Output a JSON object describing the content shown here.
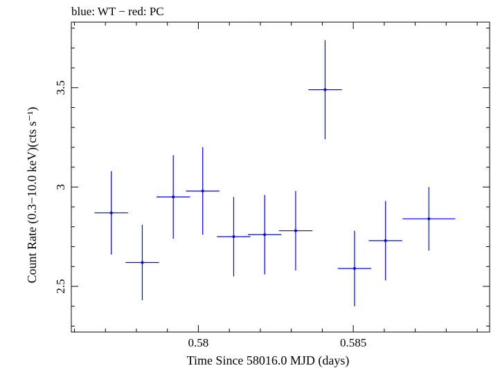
{
  "header": {
    "legend_note": "blue: WT − red: PC"
  },
  "colors": {
    "series": "#0000ff",
    "axis": "#000000",
    "background": "#ffffff"
  },
  "chart_data": {
    "type": "scatter",
    "title": "",
    "xlabel": "Time Since 58016.0 MJD (days)",
    "ylabel": "Count Rate (0.3−10.0 keV)(cts s⁻¹)",
    "xlim": [
      0.5759,
      0.5894
    ],
    "ylim": [
      2.27,
      3.83
    ],
    "x_ticks": [
      0.58,
      0.585
    ],
    "x_tick_labels": [
      "0.58",
      "0.585"
    ],
    "y_ticks": [
      2.5,
      3.0,
      3.5
    ],
    "y_tick_labels": [
      "2.5",
      "3",
      "3.5"
    ],
    "grid": false,
    "series": [
      {
        "points": [
          {
            "x": 0.57719,
            "xerr": 0.00054,
            "y": 2.87,
            "yerr": 0.21
          },
          {
            "x": 0.57819,
            "xerr": 0.00054,
            "y": 2.62,
            "yerr": 0.19
          },
          {
            "x": 0.57919,
            "xerr": 0.00054,
            "y": 2.95,
            "yerr": 0.21
          },
          {
            "x": 0.58014,
            "xerr": 0.00054,
            "y": 2.98,
            "yerr": 0.22
          },
          {
            "x": 0.58114,
            "xerr": 0.00054,
            "y": 2.75,
            "yerr": 0.2
          },
          {
            "x": 0.58214,
            "xerr": 0.00054,
            "y": 2.76,
            "yerr": 0.2
          },
          {
            "x": 0.58314,
            "xerr": 0.00054,
            "y": 2.78,
            "yerr": 0.2
          },
          {
            "x": 0.58409,
            "xerr": 0.00054,
            "y": 3.49,
            "yerr": 0.25
          },
          {
            "x": 0.58504,
            "xerr": 0.00054,
            "y": 2.59,
            "yerr": 0.19
          },
          {
            "x": 0.58604,
            "xerr": 0.00054,
            "y": 2.73,
            "yerr": 0.2
          },
          {
            "x": 0.58744,
            "xerr": 0.00085,
            "y": 2.84,
            "yerr": 0.16
          }
        ]
      }
    ]
  }
}
